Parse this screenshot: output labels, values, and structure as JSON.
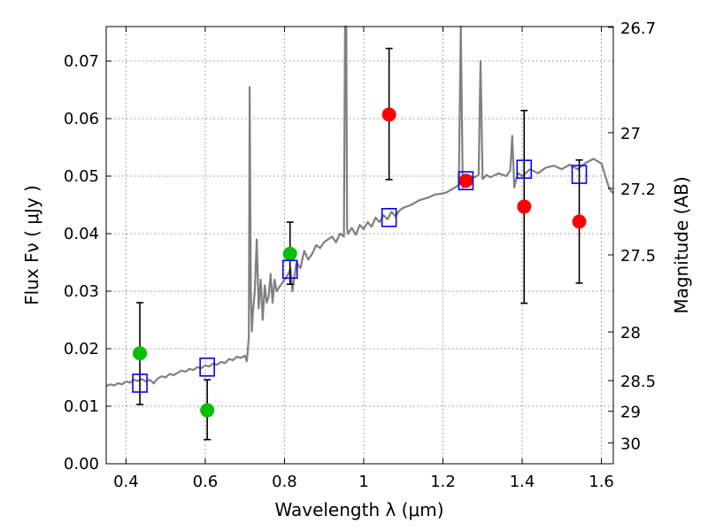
{
  "chart_data": {
    "type": "scatter",
    "xlabel": "Wavelength  λ (μm)",
    "ylabel": "Flux  Fν  ( μJy )",
    "ylabel_right": "Magnitude (AB)",
    "xlim": [
      0.35,
      1.63
    ],
    "ylim": [
      0.0,
      0.076
    ],
    "grid": true,
    "x_ticks": [
      0.4,
      0.6,
      0.8,
      1.0,
      1.2,
      1.4,
      1.6
    ],
    "x_tick_labels": [
      "0.4",
      "0.6",
      "0.8",
      "1",
      "1.2",
      "1.4",
      "1.6"
    ],
    "y_ticks": [
      0.0,
      0.01,
      0.02,
      0.03,
      0.04,
      0.05,
      0.06,
      0.07
    ],
    "y_tick_labels": [
      "0.00",
      "0.01",
      "0.02",
      "0.03",
      "0.04",
      "0.05",
      "0.06",
      "0.07"
    ],
    "right_ticks": [
      26.7,
      27.0,
      27.2,
      27.5,
      28.0,
      28.5,
      29.0,
      30.0
    ],
    "right_tick_labels": [
      "26.7",
      "27",
      "27.2",
      "27.5",
      "28",
      "28.5",
      "29",
      "30"
    ],
    "colors": {
      "model": "#808080",
      "green": "#00c000",
      "red": "#ff0000",
      "box": "#0000ff",
      "grid": "#888888"
    },
    "series": [
      {
        "marker": "green-circle",
        "x": [
          0.435,
          0.605,
          0.814
        ],
        "y": [
          0.0192,
          0.0093,
          0.0365
        ],
        "yerr_low": [
          0.0103,
          0.0042,
          0.0312
        ],
        "yerr_high": [
          0.028,
          0.0146,
          0.042
        ]
      },
      {
        "marker": "red-circle",
        "x": [
          1.064,
          1.258,
          1.405,
          1.544
        ],
        "y": [
          0.0607,
          0.0492,
          0.0447,
          0.0421
        ],
        "yerr_low": [
          0.0494,
          0.0492,
          0.0279,
          0.0314
        ],
        "yerr_high": [
          0.0722,
          0.0492,
          0.0614,
          0.0528
        ]
      },
      {
        "marker": "blue-square",
        "x": [
          0.435,
          0.605,
          0.814,
          1.064,
          1.258,
          1.405,
          1.544
        ],
        "y": [
          0.014,
          0.0168,
          0.0338,
          0.0428,
          0.0492,
          0.0512,
          0.0503
        ]
      }
    ],
    "model_spectrum": {
      "x": [
        0.35,
        0.36,
        0.37,
        0.38,
        0.39,
        0.4,
        0.41,
        0.42,
        0.43,
        0.44,
        0.45,
        0.46,
        0.47,
        0.48,
        0.49,
        0.5,
        0.51,
        0.52,
        0.53,
        0.54,
        0.55,
        0.56,
        0.57,
        0.58,
        0.59,
        0.6,
        0.61,
        0.62,
        0.63,
        0.64,
        0.65,
        0.66,
        0.67,
        0.68,
        0.69,
        0.7,
        0.705,
        0.71,
        0.712,
        0.715,
        0.718,
        0.72,
        0.725,
        0.73,
        0.735,
        0.74,
        0.745,
        0.75,
        0.755,
        0.76,
        0.765,
        0.77,
        0.775,
        0.78,
        0.79,
        0.8,
        0.81,
        0.815,
        0.82,
        0.83,
        0.84,
        0.85,
        0.86,
        0.87,
        0.88,
        0.89,
        0.9,
        0.91,
        0.92,
        0.93,
        0.94,
        0.95,
        0.953,
        0.956,
        0.958,
        0.96,
        0.965,
        0.97,
        0.98,
        0.99,
        1.0,
        1.01,
        1.02,
        1.03,
        1.04,
        1.05,
        1.06,
        1.07,
        1.08,
        1.09,
        1.1,
        1.12,
        1.14,
        1.16,
        1.18,
        1.2,
        1.21,
        1.22,
        1.23,
        1.24,
        1.245,
        1.25,
        1.255,
        1.26,
        1.265,
        1.27,
        1.28,
        1.29,
        1.295,
        1.3,
        1.31,
        1.32,
        1.34,
        1.36,
        1.37,
        1.375,
        1.38,
        1.385,
        1.39,
        1.4,
        1.42,
        1.44,
        1.46,
        1.48,
        1.5,
        1.52,
        1.54,
        1.56,
        1.58,
        1.6,
        1.62,
        1.63
      ],
      "y": [
        0.0135,
        0.0138,
        0.0136,
        0.014,
        0.0138,
        0.0143,
        0.0141,
        0.0146,
        0.0144,
        0.0147,
        0.0143,
        0.0146,
        0.014,
        0.0148,
        0.0152,
        0.015,
        0.0156,
        0.0154,
        0.0158,
        0.0162,
        0.016,
        0.0165,
        0.0163,
        0.0168,
        0.0166,
        0.0171,
        0.0169,
        0.0174,
        0.0172,
        0.0177,
        0.0175,
        0.0182,
        0.018,
        0.0186,
        0.0184,
        0.0188,
        0.0178,
        0.022,
        0.0655,
        0.03,
        0.023,
        0.026,
        0.03,
        0.039,
        0.027,
        0.032,
        0.025,
        0.031,
        0.028,
        0.029,
        0.033,
        0.028,
        0.032,
        0.03,
        0.031,
        0.032,
        0.033,
        0.034,
        0.03,
        0.035,
        0.034,
        0.037,
        0.0355,
        0.0365,
        0.038,
        0.0375,
        0.0385,
        0.039,
        0.0395,
        0.0385,
        0.04,
        0.0395,
        0.078,
        0.079,
        0.041,
        0.04,
        0.0405,
        0.041,
        0.0398,
        0.0415,
        0.0408,
        0.042,
        0.0412,
        0.0428,
        0.042,
        0.0432,
        0.0425,
        0.0438,
        0.043,
        0.044,
        0.0445,
        0.045,
        0.0458,
        0.0462,
        0.0468,
        0.047,
        0.0472,
        0.0476,
        0.048,
        0.0485,
        0.076,
        0.048,
        0.0488,
        0.0492,
        0.0495,
        0.05,
        0.0498,
        0.0502,
        0.07,
        0.0495,
        0.0502,
        0.0498,
        0.0505,
        0.05,
        0.051,
        0.057,
        0.048,
        0.0495,
        0.0505,
        0.05,
        0.0512,
        0.0505,
        0.0515,
        0.0518,
        0.0512,
        0.052,
        0.0512,
        0.0523,
        0.053,
        0.0522,
        0.0478,
        0.047
      ]
    }
  }
}
